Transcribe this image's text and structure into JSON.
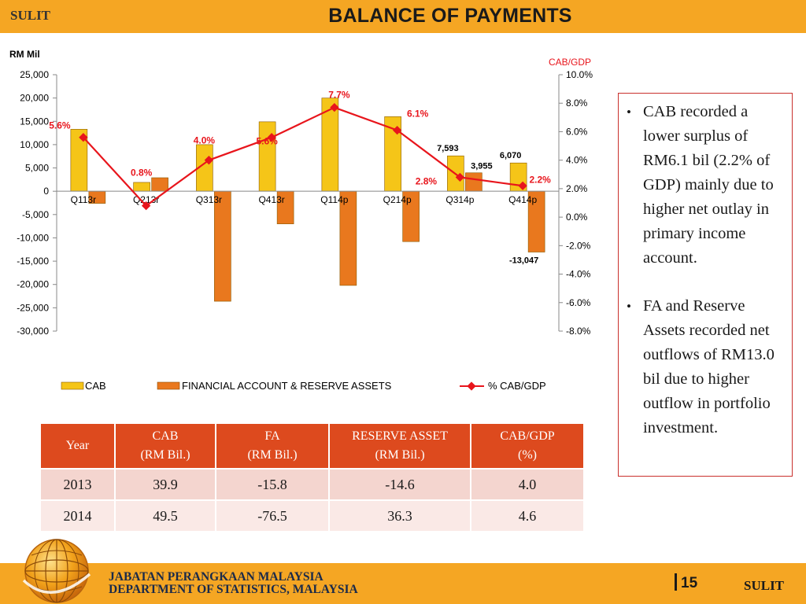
{
  "header": {
    "classification": "SULIT",
    "title": "BALANCE OF PAYMENTS"
  },
  "chart_data": {
    "type": "bar",
    "categories": [
      "Q113r",
      "Q213r",
      "Q313r",
      "Q413r",
      "Q114p",
      "Q214p",
      "Q314p",
      "Q414p"
    ],
    "series": [
      {
        "name": "CAB",
        "axis": "left",
        "values": [
          13300,
          1900,
          10000,
          14900,
          20000,
          16000,
          7593,
          6070
        ],
        "color": "#f5c518"
      },
      {
        "name": "FINANCIAL ACCOUNT & RESERVE ASSETS",
        "axis": "left",
        "values": [
          -2600,
          2900,
          -23600,
          -7000,
          -20200,
          -10800,
          3955,
          -13047
        ],
        "color": "#e9781e"
      },
      {
        "name": "% CAB/GDP",
        "axis": "right",
        "type": "line",
        "values": [
          5.6,
          0.8,
          4.0,
          5.6,
          7.7,
          6.1,
          2.8,
          2.2
        ],
        "color": "#e8151c"
      }
    ],
    "y_left": {
      "label": "RM Mil",
      "range": [
        -30000,
        25000
      ],
      "tick_values": [
        25000,
        20000,
        15000,
        10000,
        5000,
        0,
        -5000,
        -10000,
        -15000,
        -20000,
        -25000,
        -30000
      ],
      "ticks": [
        "25,000",
        "20,000",
        "15,000",
        "10,000",
        "5,000",
        "0",
        "-5,000",
        "-10,000",
        "-15,000",
        "-20,000",
        "-25,000",
        "-30,000"
      ]
    },
    "y_right": {
      "label": "CAB/GDP",
      "range": [
        -8,
        10
      ],
      "tick_values": [
        10,
        8,
        6,
        4,
        2,
        0,
        -2,
        -4,
        -6,
        -8
      ],
      "ticks": [
        "10.0%",
        "8.0%",
        "6.0%",
        "4.0%",
        "2.0%",
        "0.0%",
        "-2.0%",
        "-4.0%",
        "-6.0%",
        "-8.0%"
      ]
    },
    "value_labels": [
      {
        "series": 0,
        "index": 6,
        "text": "7,593"
      },
      {
        "series": 0,
        "index": 7,
        "text": "6,070"
      },
      {
        "series": 1,
        "index": 6,
        "text": "3,955"
      },
      {
        "series": 1,
        "index": 7,
        "text": "-13,047"
      }
    ],
    "percent_labels": [
      "5.6%",
      "0.8%",
      "4.0%",
      "5.6%",
      "7.7%",
      "6.1%",
      "2.8%",
      "2.2%"
    ],
    "legend": [
      "CAB",
      "FINANCIAL ACCOUNT & RESERVE ASSETS",
      "% CAB/GDP"
    ]
  },
  "bullets": [
    "CAB recorded a lower surplus of RM6.1 bil (2.2% of GDP) mainly due to higher net outlay in primary income account.",
    "FA and Reserve Assets recorded net outflows of RM13.0 bil due to higher outflow in portfolio investment."
  ],
  "table": {
    "headers": [
      {
        "line1": "Year",
        "line2": ""
      },
      {
        "line1": "CAB",
        "line2": "(RM Bil.)"
      },
      {
        "line1": "FA",
        "line2": "(RM Bil.)"
      },
      {
        "line1": "RESERVE ASSET",
        "line2": "(RM Bil.)"
      },
      {
        "line1": "CAB/GDP",
        "line2": "(%)"
      }
    ],
    "rows": [
      [
        "2013",
        "39.9",
        "-15.8",
        "-14.6",
        "4.0"
      ],
      [
        "2014",
        "49.5",
        "-76.5",
        "36.3",
        "4.6"
      ]
    ]
  },
  "footer": {
    "org_line1": "JABATAN PERANGKAAN MALAYSIA",
    "org_line2": "DEPARTMENT OF STATISTICS, MALAYSIA",
    "page": "15",
    "classification": "SULIT"
  },
  "colors": {
    "band": "#f5a623",
    "table_header": "#dd4a1e",
    "accent_red": "#e8151c"
  }
}
